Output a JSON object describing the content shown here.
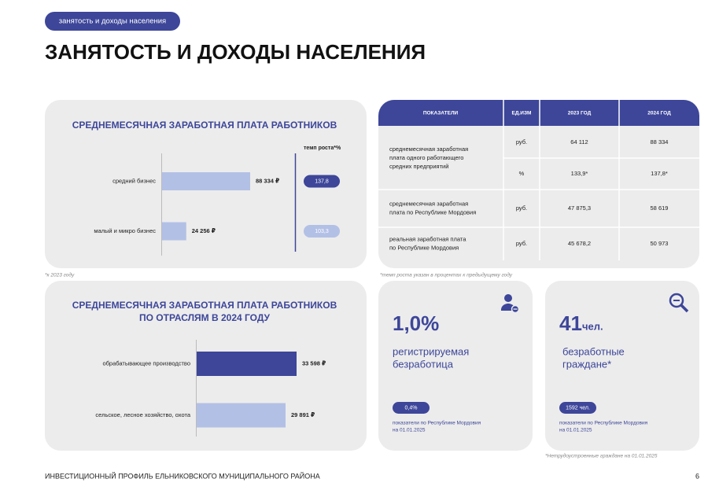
{
  "header": {
    "tag": "занятость и доходы населения",
    "title": "ЗАНЯТОСТЬ И ДОХОДЫ НАСЕЛЕНИЯ"
  },
  "salary": {
    "title": "СРЕДНЕМЕСЯЧНАЯ ЗАРАБОТНАЯ ПЛАТА РАБОТНИКОВ",
    "growth_title": "темп роста*%",
    "categories": [
      "средний бизнес",
      "малый и микро бизнес"
    ],
    "values": [
      88334,
      24256
    ],
    "value_labels": [
      "88 334 ₽",
      "24 256 ₽"
    ],
    "growth": [
      "137,8",
      "103,3"
    ],
    "color": "#b3c0e6",
    "footnote": "*к 2023 году"
  },
  "table": {
    "header": [
      "ПОКАЗАТЕЛИ",
      "ЕД.ИЗМ",
      "2023 ГОД",
      "2024 ГОД"
    ],
    "rows": [
      {
        "label": [
          "среднемесячная заработная",
          "плата одного работающего",
          "средних предприятий"
        ],
        "cells": [
          [
            "руб.",
            "64 112",
            "88 334"
          ],
          [
            "%",
            "133,9*",
            "137,8*"
          ]
        ]
      },
      {
        "label": [
          "среднемесячная заработная",
          "плата по Республике Мордовия"
        ],
        "cells": [
          [
            "руб.",
            "47 875,3",
            "58 619"
          ]
        ]
      },
      {
        "label": [
          "реальная заработная плата",
          "по Республике Мордовия"
        ],
        "cells": [
          [
            "руб.",
            "45 678,2",
            "50 973"
          ]
        ]
      }
    ],
    "footnote": "*темп роста указан в процентах к предыдущему году"
  },
  "sectors": {
    "title": [
      "СРЕДНЕМЕСЯЧНАЯ ЗАРАБОТНАЯ ПЛАТА РАБОТНИКОВ",
      "ПО ОТРАСЛЯМ В 2024 ГОДУ"
    ],
    "categories": [
      "обрабатывающее производство",
      "сельское, лесное хозяйство, охота"
    ],
    "values": [
      33598,
      29891
    ],
    "value_labels": [
      "33 598 ₽",
      "29 891 ₽"
    ],
    "colors": [
      "#3d4699",
      "#b3c0e6"
    ]
  },
  "unemployment": {
    "value": "1,0%",
    "label": [
      "регистрируемая",
      "безработица"
    ],
    "region_value": "0,4%",
    "note": [
      "показатели по Республике Мордовия",
      "на 01.01.2025"
    ]
  },
  "unemployed": {
    "value": "41",
    "unit": "чел.",
    "label": [
      "безработные",
      "граждане*"
    ],
    "region_value": "1592 чел.",
    "note": [
      "показатели по Республике Мордовия",
      "на 01.01.2025"
    ],
    "footnote": "*Нетрудоустроенные граждане на 01.01.2025"
  },
  "footer": {
    "text": "ИНВЕСТИЦИОННЫЙ ПРОФИЛЬ ЕЛЬНИКОВСКОГО МУНИЦИПАЛЬНОГО РАЙОНА",
    "page": "6"
  }
}
